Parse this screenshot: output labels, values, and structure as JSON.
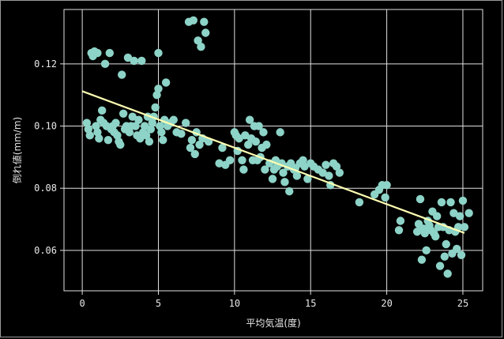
{
  "chart_data": {
    "type": "scatter",
    "xlabel": "平均気温(度)",
    "ylabel": "倒れ値(mm/m)",
    "xlim": [
      -1.2,
      26.3
    ],
    "ylim": [
      0.047,
      0.1375
    ],
    "xticks": [
      0,
      5,
      10,
      15,
      20,
      25
    ],
    "yticks": [
      0.06,
      0.08,
      0.1,
      0.12
    ],
    "xtick_labels": [
      "0",
      "5",
      "10",
      "15",
      "20",
      "25"
    ],
    "ytick_labels": [
      "0.06",
      "0.08",
      "0.10",
      "0.12"
    ],
    "grid": true,
    "background": "#000000",
    "point_color": "#8dd3c7",
    "line_color": "#ffffb3",
    "regression_line": {
      "x": [
        0.0,
        25.1
      ],
      "y": [
        0.1112,
        0.0656
      ]
    },
    "points": [
      [
        0.3,
        0.101
      ],
      [
        0.4,
        0.099
      ],
      [
        0.5,
        0.097
      ],
      [
        0.6,
        0.1235
      ],
      [
        0.7,
        0.1225
      ],
      [
        0.8,
        0.124
      ],
      [
        0.9,
        0.1
      ],
      [
        1.0,
        0.098
      ],
      [
        1.0,
        0.1235
      ],
      [
        1.1,
        0.096
      ],
      [
        1.2,
        0.102
      ],
      [
        1.3,
        0.105
      ],
      [
        1.4,
        0.101
      ],
      [
        1.5,
        0.12
      ],
      [
        1.6,
        0.1
      ],
      [
        1.7,
        0.0955
      ],
      [
        1.8,
        0.1235
      ],
      [
        1.9,
        0.099
      ],
      [
        2.0,
        0.1
      ],
      [
        2.1,
        0.098
      ],
      [
        2.2,
        0.101
      ],
      [
        2.3,
        0.097
      ],
      [
        2.4,
        0.095
      ],
      [
        2.5,
        0.094
      ],
      [
        2.6,
        0.1165
      ],
      [
        2.7,
        0.104
      ],
      [
        2.8,
        0.099
      ],
      [
        2.9,
        0.1
      ],
      [
        3.0,
        0.122
      ],
      [
        3.1,
        0.098
      ],
      [
        3.2,
        0.1
      ],
      [
        3.3,
        0.103
      ],
      [
        3.4,
        0.121
      ],
      [
        3.5,
        0.1
      ],
      [
        3.6,
        0.097
      ],
      [
        3.7,
        0.102
      ],
      [
        3.8,
        0.096
      ],
      [
        3.9,
        0.121
      ],
      [
        4.0,
        0.098
      ],
      [
        4.1,
        0.1
      ],
      [
        4.2,
        0.097
      ],
      [
        4.3,
        0.103
      ],
      [
        4.4,
        0.095
      ],
      [
        4.5,
        0.099
      ],
      [
        4.6,
        0.101
      ],
      [
        4.7,
        0.103
      ],
      [
        4.8,
        0.106
      ],
      [
        4.9,
        0.11
      ],
      [
        5.0,
        0.1235
      ],
      [
        5.0,
        0.112
      ],
      [
        5.1,
        0.1
      ],
      [
        5.2,
        0.098
      ],
      [
        5.3,
        0.0955
      ],
      [
        5.4,
        0.102
      ],
      [
        5.5,
        0.114
      ],
      [
        5.6,
        0.1
      ],
      [
        5.8,
        0.101
      ],
      [
        6.0,
        0.102
      ],
      [
        6.2,
        0.098
      ],
      [
        6.5,
        0.0975
      ],
      [
        6.8,
        0.101
      ],
      [
        7.0,
        0.1335
      ],
      [
        7.1,
        0.093
      ],
      [
        7.2,
        0.0955
      ],
      [
        7.3,
        0.134
      ],
      [
        7.4,
        0.091
      ],
      [
        7.5,
        0.098
      ],
      [
        7.6,
        0.1275
      ],
      [
        7.7,
        0.094
      ],
      [
        7.8,
        0.1255
      ],
      [
        7.9,
        0.096
      ],
      [
        8.0,
        0.1335
      ],
      [
        8.1,
        0.13
      ],
      [
        8.3,
        0.095
      ],
      [
        9.0,
        0.088
      ],
      [
        9.2,
        0.093
      ],
      [
        9.4,
        0.0875
      ],
      [
        9.7,
        0.089
      ],
      [
        10.0,
        0.098
      ],
      [
        10.1,
        0.097
      ],
      [
        10.2,
        0.092
      ],
      [
        10.3,
        0.096
      ],
      [
        10.5,
        0.089
      ],
      [
        10.6,
        0.086
      ],
      [
        10.7,
        0.097
      ],
      [
        10.9,
        0.094
      ],
      [
        11.0,
        0.102
      ],
      [
        11.1,
        0.096
      ],
      [
        11.2,
        0.089
      ],
      [
        11.3,
        0.1
      ],
      [
        11.4,
        0.095
      ],
      [
        11.5,
        0.089
      ],
      [
        11.6,
        0.1
      ],
      [
        11.7,
        0.09
      ],
      [
        11.8,
        0.093
      ],
      [
        11.9,
        0.098
      ],
      [
        12.0,
        0.086
      ],
      [
        12.1,
        0.094
      ],
      [
        12.3,
        0.088
      ],
      [
        12.5,
        0.083
      ],
      [
        12.6,
        0.086
      ],
      [
        12.7,
        0.089
      ],
      [
        12.8,
        0.087
      ],
      [
        13.0,
        0.098
      ],
      [
        13.1,
        0.088
      ],
      [
        13.2,
        0.085
      ],
      [
        13.3,
        0.082
      ],
      [
        13.5,
        0.087
      ],
      [
        13.6,
        0.079
      ],
      [
        13.7,
        0.088
      ],
      [
        13.9,
        0.086
      ],
      [
        14.0,
        0.0865
      ],
      [
        14.1,
        0.084
      ],
      [
        14.3,
        0.088
      ],
      [
        14.5,
        0.089
      ],
      [
        14.6,
        0.087
      ],
      [
        14.8,
        0.083
      ],
      [
        15.0,
        0.088
      ],
      [
        15.2,
        0.087
      ],
      [
        15.5,
        0.086
      ],
      [
        15.8,
        0.085
      ],
      [
        16.0,
        0.0875
      ],
      [
        16.2,
        0.084
      ],
      [
        16.3,
        0.081
      ],
      [
        16.5,
        0.088
      ],
      [
        16.7,
        0.087
      ],
      [
        16.9,
        0.085
      ],
      [
        18.2,
        0.0755
      ],
      [
        19.2,
        0.078
      ],
      [
        19.5,
        0.0795
      ],
      [
        19.7,
        0.081
      ],
      [
        19.9,
        0.077
      ],
      [
        20.0,
        0.081
      ],
      [
        20.8,
        0.0665
      ],
      [
        20.9,
        0.0695
      ],
      [
        22.0,
        0.066
      ],
      [
        22.1,
        0.0685
      ],
      [
        22.2,
        0.0765
      ],
      [
        22.3,
        0.057
      ],
      [
        22.4,
        0.067
      ],
      [
        22.5,
        0.0655
      ],
      [
        22.6,
        0.06
      ],
      [
        22.7,
        0.0695
      ],
      [
        22.8,
        0.068
      ],
      [
        22.9,
        0.0665
      ],
      [
        23.0,
        0.0725
      ],
      [
        23.1,
        0.0655
      ],
      [
        23.2,
        0.0645
      ],
      [
        23.3,
        0.071
      ],
      [
        23.4,
        0.0675
      ],
      [
        23.5,
        0.055
      ],
      [
        23.6,
        0.0755
      ],
      [
        23.7,
        0.0675
      ],
      [
        23.8,
        0.058
      ],
      [
        23.9,
        0.062
      ],
      [
        24.0,
        0.0525
      ],
      [
        24.1,
        0.0665
      ],
      [
        24.2,
        0.0755
      ],
      [
        24.3,
        0.059
      ],
      [
        24.4,
        0.072
      ],
      [
        24.5,
        0.066
      ],
      [
        24.6,
        0.0605
      ],
      [
        24.7,
        0.0675
      ],
      [
        24.8,
        0.071
      ],
      [
        24.9,
        0.0585
      ],
      [
        25.0,
        0.076
      ],
      [
        25.1,
        0.0675
      ],
      [
        25.4,
        0.072
      ]
    ]
  }
}
